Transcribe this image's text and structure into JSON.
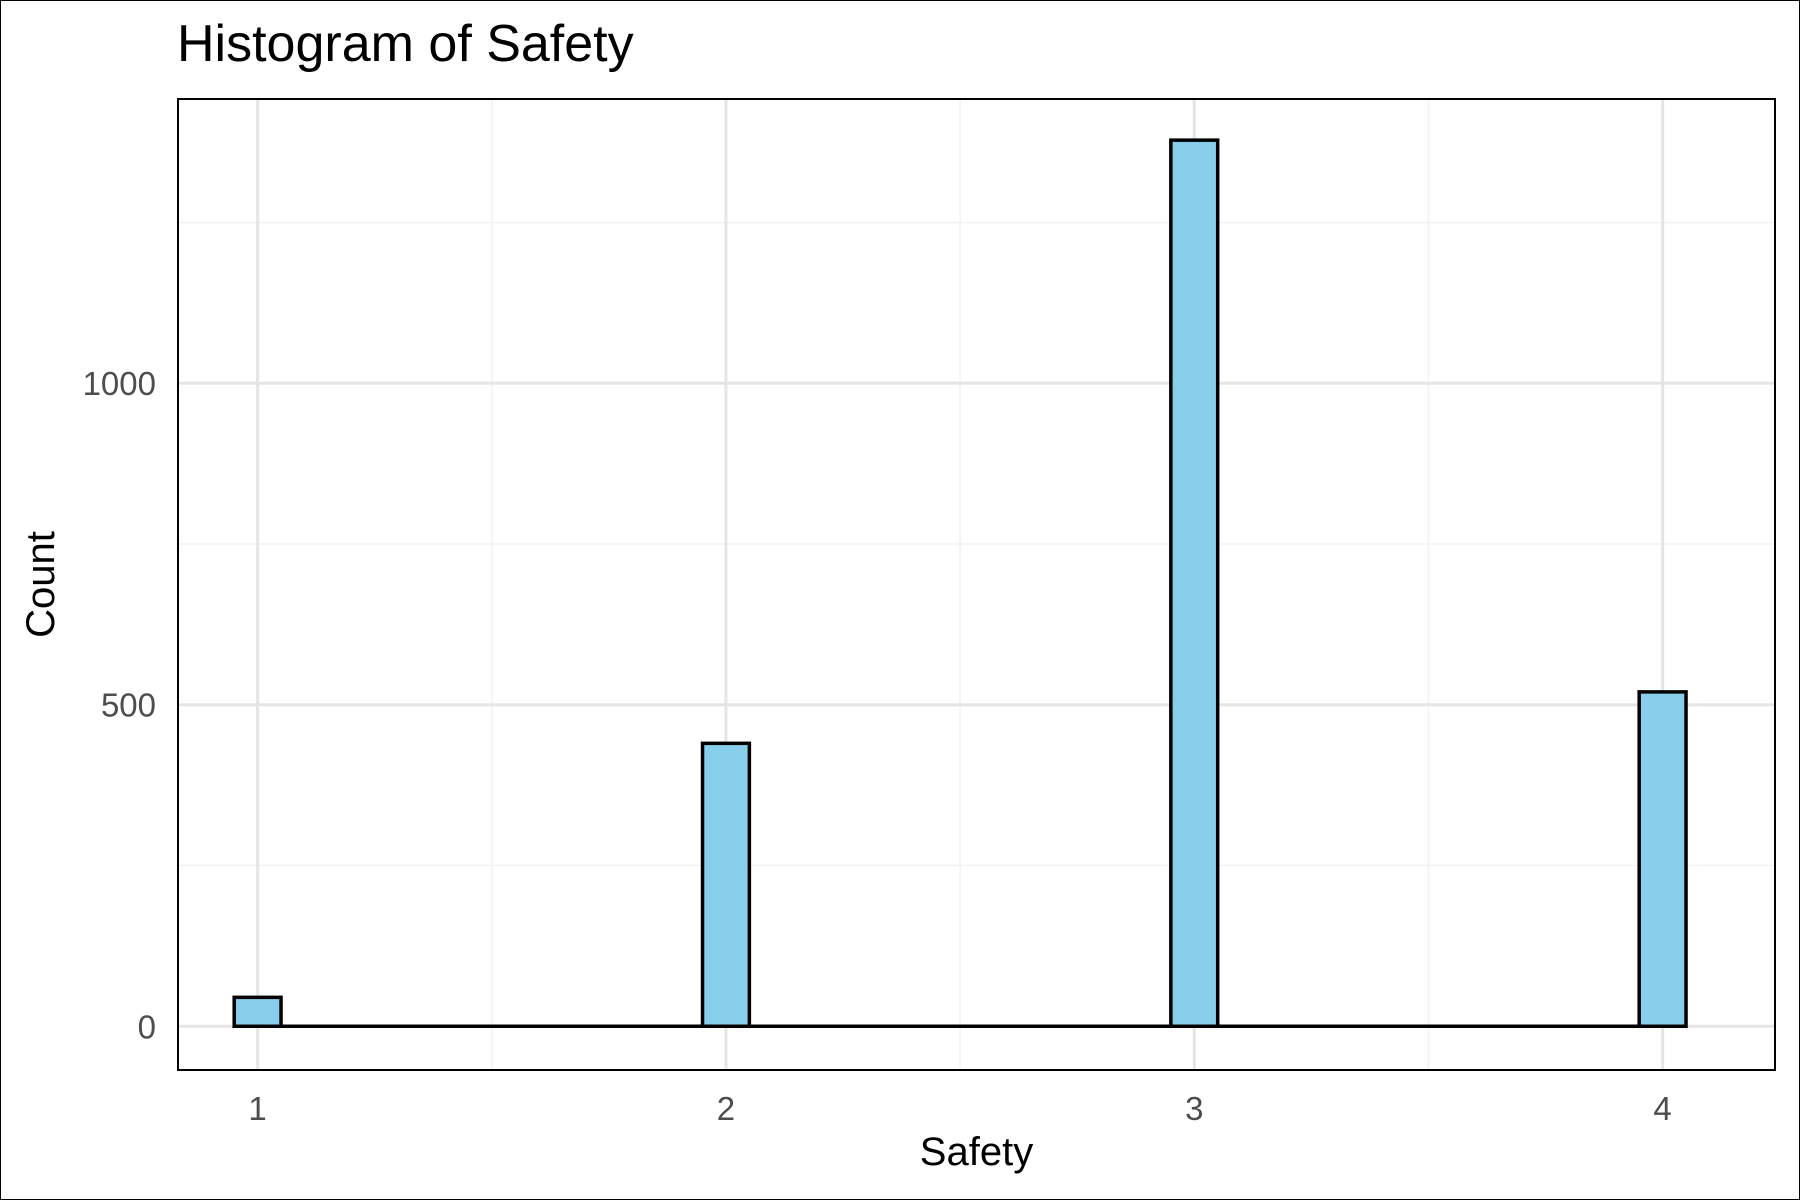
{
  "chart_data": {
    "type": "bar",
    "title": "Histogram of Safety",
    "xlabel": "Safety",
    "ylabel": "Count",
    "x_ticks": [
      "1",
      "2",
      "3",
      "4"
    ],
    "y_ticks": [
      "0",
      "500",
      "1000"
    ],
    "xlim": [
      0.83,
      4.24
    ],
    "ylim": [
      -68,
      1442
    ],
    "grid": true,
    "legend": "none",
    "bin_width": 0.1,
    "bins": [
      {
        "x": 1,
        "count": 45
      },
      {
        "x": 2,
        "count": 440
      },
      {
        "x": 3,
        "count": 1378
      },
      {
        "x": 4,
        "count": 520
      }
    ],
    "zero_range": [
      0.95,
      4.05
    ],
    "colors": {
      "bar_fill": "#87CEEB",
      "bar_stroke": "#000000",
      "grid_major": "#e5e5e5",
      "grid_minor": "#f2f2f2",
      "panel_border": "#000000"
    }
  }
}
